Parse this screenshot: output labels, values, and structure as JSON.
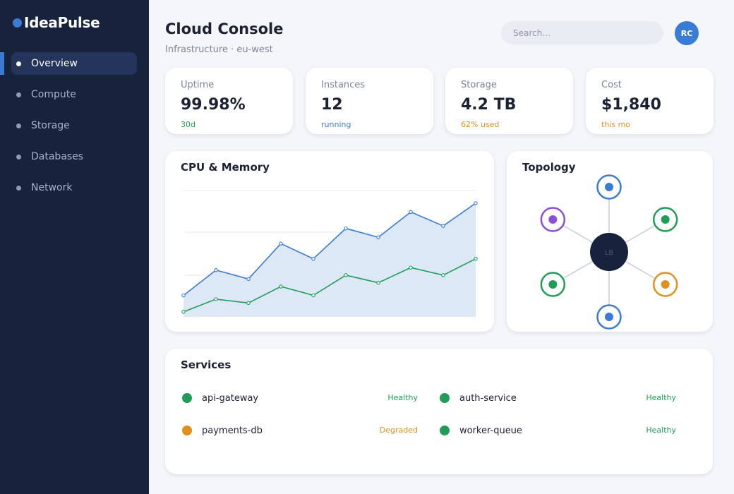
{
  "app": {
    "name": "IdeaPulse",
    "accent": "#3a7bd5"
  },
  "sidebar": {
    "items": [
      {
        "label": "Overview",
        "active": true
      },
      {
        "label": "Compute",
        "active": false
      },
      {
        "label": "Storage",
        "active": false
      },
      {
        "label": "Databases",
        "active": false
      },
      {
        "label": "Network",
        "active": false
      }
    ]
  },
  "header": {
    "title": "Cloud Console",
    "subtitle": "Infrastructure · eu-west",
    "search_placeholder": "Search…",
    "avatar_initials": "RC"
  },
  "stats": [
    {
      "label": "Uptime",
      "value": "99.98%",
      "sub": "30d",
      "sub_color": "#1f9d55"
    },
    {
      "label": "Instances",
      "value": "12",
      "sub": "running",
      "sub_color": "#3a7bd5"
    },
    {
      "label": "Storage",
      "value": "4.2 TB",
      "sub": "62% used",
      "sub_color": "#e0901f"
    },
    {
      "label": "Cost",
      "value": "$1,840",
      "sub": "this mo",
      "sub_color": "#e0901f"
    }
  ],
  "chart": {
    "title": "CPU & Memory"
  },
  "chart_data": {
    "type": "line",
    "title": "CPU & Memory",
    "xlabel": "",
    "ylabel": "",
    "ylim": [
      0,
      100
    ],
    "grid": true,
    "x": [
      1,
      2,
      3,
      4,
      5,
      6,
      7,
      8,
      9,
      10
    ],
    "series": [
      {
        "values": [
          17,
          37,
          30,
          58,
          46,
          70,
          63,
          83,
          72,
          90
        ],
        "color": "#3a7bd5",
        "fill": "#dde8f7"
      },
      {
        "values": [
          4,
          14,
          11,
          24,
          17,
          33,
          27,
          39,
          33,
          46
        ],
        "color": "#1f9d55"
      }
    ]
  },
  "topology": {
    "title": "Topology",
    "hub_label": "LB",
    "nodes": [
      {
        "color": "#3a7bd5"
      },
      {
        "color": "#1f9d55"
      },
      {
        "color": "#e0901f"
      },
      {
        "color": "#3a7bd5"
      },
      {
        "color": "#1f9d55"
      },
      {
        "color": "#8a4fd6"
      }
    ]
  },
  "services": {
    "title": "Services",
    "items": [
      {
        "name": "api-gateway",
        "status": "Healthy",
        "color": "#1f9d55"
      },
      {
        "name": "auth-service",
        "status": "Healthy",
        "color": "#1f9d55"
      },
      {
        "name": "payments-db",
        "status": "Degraded",
        "color": "#e0901f"
      },
      {
        "name": "worker-queue",
        "status": "Healthy",
        "color": "#1f9d55"
      }
    ]
  }
}
